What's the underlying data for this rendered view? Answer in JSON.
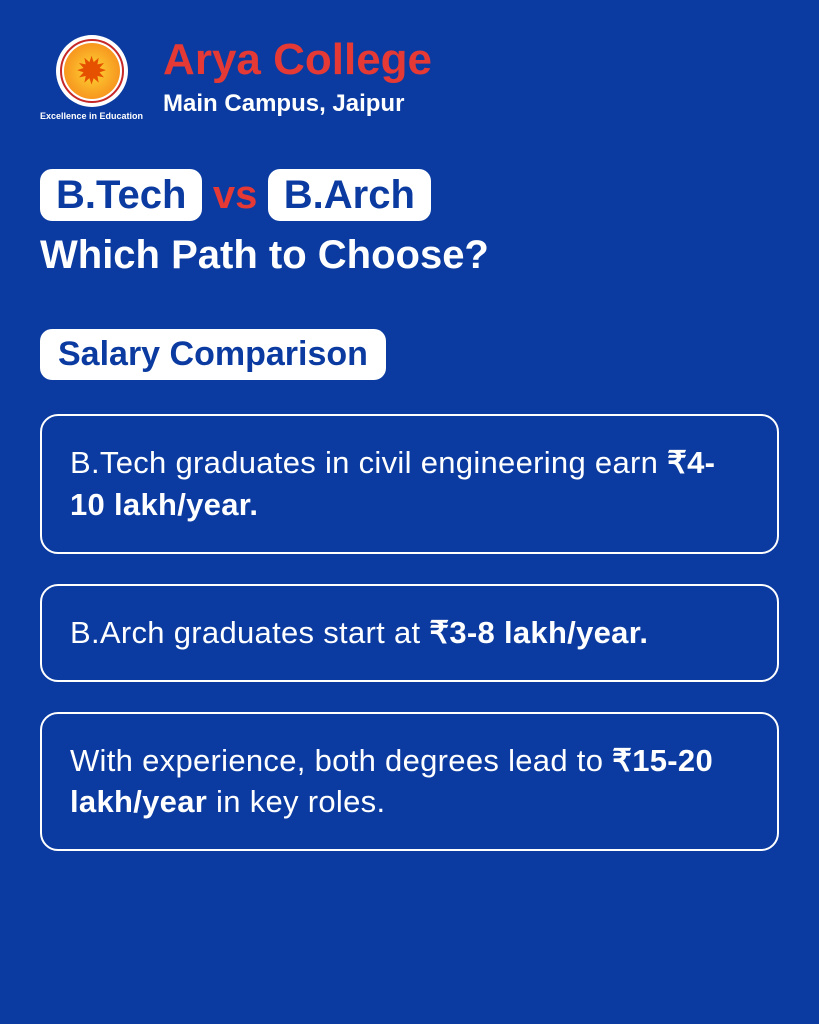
{
  "colors": {
    "background": "#0b3ba0",
    "accent_red": "#e53935",
    "white": "#ffffff",
    "pill_text": "#0b3ba0"
  },
  "logo": {
    "tagline": "Excellence in Education",
    "glyph": "✹"
  },
  "header": {
    "college_name": "Arya College",
    "campus": "Main Campus, Jaipur"
  },
  "headline": {
    "pill_left": "B.Tech",
    "vs": "vs",
    "pill_right": "B.Arch",
    "subtitle": "Which Path to Choose?"
  },
  "section_label": "Salary Comparison",
  "cards": [
    {
      "prefix": "B.Tech graduates in civil engineering earn ",
      "bold": "₹4-10 lakh/year.",
      "suffix": ""
    },
    {
      "prefix": "B.Arch graduates start at ",
      "bold": "₹3-8 lakh/year.",
      "suffix": ""
    },
    {
      "prefix": "With experience, both degrees lead to ",
      "bold": "₹15-20 lakh/year",
      "suffix": " in key roles."
    }
  ],
  "typography": {
    "college_name_fontsize": 44,
    "campus_fontsize": 24,
    "headline_fontsize": 40,
    "section_label_fontsize": 34,
    "card_fontsize": 31
  }
}
